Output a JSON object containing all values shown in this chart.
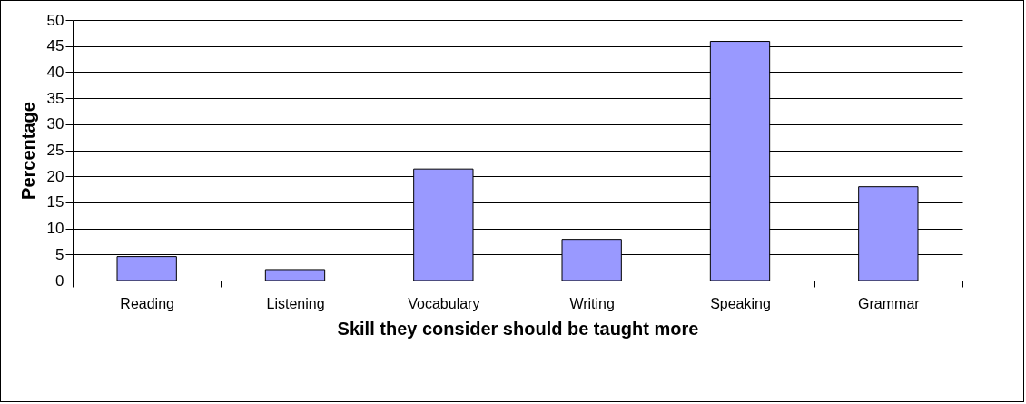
{
  "chart_data": {
    "type": "bar",
    "xlabel": "Skill they consider should be taught more",
    "ylabel": "Percentage",
    "categories": [
      "Reading",
      "Listening",
      "Vocabulary",
      "Writing",
      "Speaking",
      "Grammar"
    ],
    "values": [
      4.6,
      2.1,
      21.4,
      7.9,
      45.9,
      18.0
    ],
    "color": "#9999ff",
    "ylim": [
      0,
      50
    ],
    "yticks": [
      0,
      5,
      10,
      15,
      20,
      25,
      30,
      35,
      40,
      45,
      50
    ],
    "grid": "y"
  }
}
